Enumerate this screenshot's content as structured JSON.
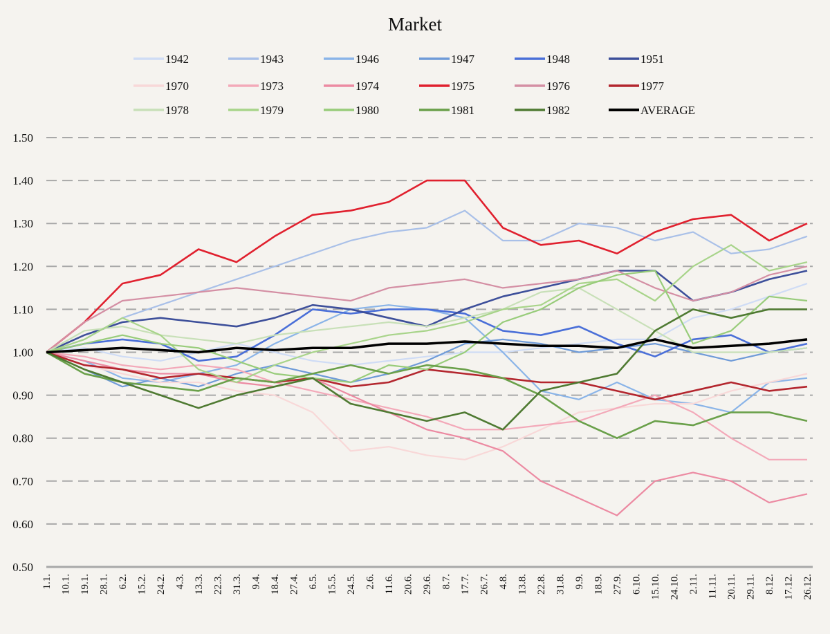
{
  "chart_data": {
    "type": "line",
    "title": "Market",
    "xlabel": "",
    "ylabel": "",
    "ylim": [
      0.5,
      1.5
    ],
    "yticks": [
      "0.50",
      "0.60",
      "0.70",
      "0.80",
      "0.90",
      "1.00",
      "1.10",
      "1.20",
      "1.30",
      "1.40",
      "1.50"
    ],
    "grid": "horizontal dashed",
    "legend_position": "top",
    "xtick_labels": [
      "1.1.",
      "10.1.",
      "19.1.",
      "28.1.",
      "6.2.",
      "15.2.",
      "24.2.",
      "4.3.",
      "13.3.",
      "22.3.",
      "31.3.",
      "9.4.",
      "18.4.",
      "27.4.",
      "6.5.",
      "15.5.",
      "24.5.",
      "2.6.",
      "11.6.",
      "20.6.",
      "29.6.",
      "8.7.",
      "17.7.",
      "26.7.",
      "4.8.",
      "13.8.",
      "22.8.",
      "31.8.",
      "9.9.",
      "18.9.",
      "27.9.",
      "6.10.",
      "15.10.",
      "24.10.",
      "2.11.",
      "11.11.",
      "20.11.",
      "29.11.",
      "8.12.",
      "17.12.",
      "26.12."
    ],
    "x": [
      "1.1.",
      "19.1.",
      "6.2.",
      "24.2.",
      "13.3.",
      "31.3.",
      "18.4.",
      "6.5.",
      "24.5.",
      "11.6.",
      "29.6.",
      "17.7.",
      "4.8.",
      "22.8.",
      "9.9.",
      "27.9.",
      "15.10.",
      "2.11.",
      "20.11.",
      "8.12.",
      "26.12."
    ],
    "series": [
      {
        "name": "1942",
        "color": "#cfdcf5",
        "values": [
          1.0,
          1.01,
          0.99,
          0.98,
          1.0,
          1.02,
          1.0,
          0.98,
          0.97,
          0.98,
          0.99,
          1.0,
          1.0,
          1.01,
          1.02,
          1.03,
          1.03,
          1.08,
          1.1,
          1.13,
          1.16
        ]
      },
      {
        "name": "1943",
        "color": "#a9c0e8",
        "values": [
          1.0,
          1.03,
          1.08,
          1.11,
          1.14,
          1.17,
          1.2,
          1.23,
          1.26,
          1.28,
          1.29,
          1.33,
          1.26,
          1.26,
          1.3,
          1.29,
          1.26,
          1.28,
          1.23,
          1.24,
          1.27
        ]
      },
      {
        "name": "1946",
        "color": "#8ab4e8",
        "values": [
          1.0,
          0.98,
          0.94,
          0.93,
          0.95,
          0.97,
          1.02,
          1.06,
          1.1,
          1.11,
          1.1,
          1.08,
          1.0,
          0.91,
          0.89,
          0.93,
          0.89,
          0.88,
          0.86,
          0.93,
          0.94
        ]
      },
      {
        "name": "1947",
        "color": "#6f9bd8",
        "values": [
          1.0,
          0.96,
          0.92,
          0.94,
          0.92,
          0.95,
          0.97,
          0.95,
          0.93,
          0.95,
          0.98,
          1.02,
          1.03,
          1.02,
          1.0,
          1.01,
          1.02,
          1.0,
          0.98,
          1.0,
          1.01
        ]
      },
      {
        "name": "1948",
        "color": "#4a6fd8",
        "values": [
          1.0,
          1.02,
          1.03,
          1.02,
          0.98,
          0.99,
          1.04,
          1.1,
          1.09,
          1.1,
          1.1,
          1.09,
          1.05,
          1.04,
          1.06,
          1.02,
          0.99,
          1.03,
          1.04,
          1.0,
          1.02
        ]
      },
      {
        "name": "1951",
        "color": "#3d4f9a",
        "values": [
          1.0,
          1.04,
          1.07,
          1.08,
          1.07,
          1.06,
          1.08,
          1.11,
          1.1,
          1.08,
          1.06,
          1.1,
          1.13,
          1.15,
          1.17,
          1.19,
          1.19,
          1.12,
          1.14,
          1.17,
          1.19
        ]
      },
      {
        "name": "1970",
        "color": "#f8d8d8",
        "values": [
          1.0,
          0.97,
          0.95,
          0.93,
          0.93,
          0.91,
          0.9,
          0.86,
          0.77,
          0.78,
          0.76,
          0.75,
          0.78,
          0.82,
          0.86,
          0.87,
          0.88,
          0.88,
          0.91,
          0.93,
          0.95
        ]
      },
      {
        "name": "1973",
        "color": "#f3a9b9",
        "values": [
          1.0,
          0.99,
          0.97,
          0.96,
          0.97,
          0.96,
          0.93,
          0.91,
          0.89,
          0.87,
          0.85,
          0.82,
          0.82,
          0.83,
          0.84,
          0.87,
          0.9,
          0.86,
          0.8,
          0.75,
          0.75
        ]
      },
      {
        "name": "1974",
        "color": "#ec8aa2",
        "values": [
          1.0,
          0.98,
          0.96,
          0.95,
          0.95,
          0.93,
          0.92,
          0.94,
          0.9,
          0.86,
          0.82,
          0.8,
          0.77,
          0.7,
          0.66,
          0.62,
          0.7,
          0.72,
          0.7,
          0.65,
          0.67
        ]
      },
      {
        "name": "1975",
        "color": "#e0202e",
        "values": [
          1.0,
          1.07,
          1.16,
          1.18,
          1.24,
          1.21,
          1.27,
          1.32,
          1.33,
          1.35,
          1.4,
          1.4,
          1.29,
          1.25,
          1.26,
          1.23,
          1.28,
          1.31,
          1.32,
          1.26,
          1.3
        ]
      },
      {
        "name": "1976",
        "color": "#d48fa4",
        "values": [
          1.0,
          1.07,
          1.12,
          1.13,
          1.14,
          1.15,
          1.14,
          1.13,
          1.12,
          1.15,
          1.16,
          1.17,
          1.15,
          1.16,
          1.17,
          1.19,
          1.15,
          1.12,
          1.14,
          1.18,
          1.2
        ]
      },
      {
        "name": "1977",
        "color": "#b3262e",
        "values": [
          1.0,
          0.97,
          0.96,
          0.94,
          0.95,
          0.94,
          0.93,
          0.94,
          0.92,
          0.93,
          0.96,
          0.95,
          0.94,
          0.93,
          0.93,
          0.91,
          0.89,
          0.91,
          0.93,
          0.91,
          0.92
        ]
      },
      {
        "name": "1978",
        "color": "#c8e0b8",
        "values": [
          1.0,
          1.05,
          1.06,
          1.04,
          1.03,
          1.02,
          1.04,
          1.05,
          1.06,
          1.07,
          1.06,
          1.08,
          1.1,
          1.14,
          1.15,
          1.1,
          1.05,
          1.0,
          1.0,
          1.0,
          1.01
        ]
      },
      {
        "name": "1979",
        "color": "#a8d48a",
        "values": [
          1.0,
          1.03,
          1.08,
          1.04,
          0.96,
          0.93,
          0.97,
          1.0,
          1.02,
          1.04,
          1.05,
          1.07,
          1.1,
          1.11,
          1.16,
          1.17,
          1.12,
          1.2,
          1.25,
          1.19,
          1.21
        ]
      },
      {
        "name": "1980",
        "color": "#98cc7a",
        "values": [
          1.0,
          1.02,
          1.04,
          1.02,
          1.01,
          0.98,
          0.95,
          0.94,
          0.93,
          0.97,
          0.96,
          1.0,
          1.07,
          1.1,
          1.15,
          1.18,
          1.19,
          1.02,
          1.05,
          1.13,
          1.12
        ]
      },
      {
        "name": "1981",
        "color": "#6aa04a",
        "values": [
          1.0,
          0.95,
          0.93,
          0.92,
          0.91,
          0.94,
          0.93,
          0.95,
          0.97,
          0.95,
          0.97,
          0.96,
          0.94,
          0.9,
          0.84,
          0.8,
          0.84,
          0.83,
          0.86,
          0.86,
          0.84
        ]
      },
      {
        "name": "1982",
        "color": "#4f7a32",
        "values": [
          1.0,
          0.96,
          0.93,
          0.9,
          0.87,
          0.9,
          0.92,
          0.94,
          0.88,
          0.86,
          0.84,
          0.86,
          0.82,
          0.91,
          0.93,
          0.95,
          1.05,
          1.1,
          1.08,
          1.1,
          1.1
        ]
      },
      {
        "name": "AVERAGE",
        "color": "#000000",
        "values": [
          1.0,
          1.005,
          1.01,
          1.005,
          1.0,
          1.01,
          1.005,
          1.01,
          1.01,
          1.02,
          1.02,
          1.025,
          1.02,
          1.015,
          1.015,
          1.01,
          1.03,
          1.01,
          1.015,
          1.02,
          1.03
        ]
      }
    ]
  }
}
